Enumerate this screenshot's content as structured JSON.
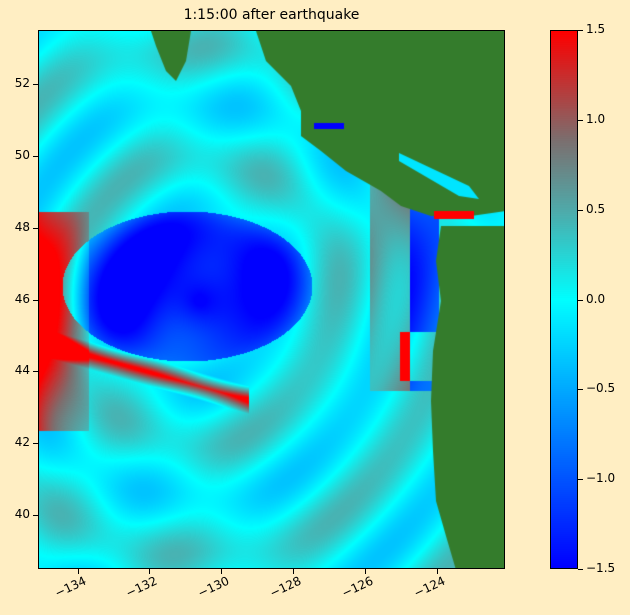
{
  "chart_data": {
    "type": "heatmap",
    "title": "1:15:00 after earthquake",
    "xlim": [
      -135.1,
      -122.1
    ],
    "ylim": [
      38.5,
      53.5
    ],
    "x_ticks": [
      "−134",
      "−132",
      "−130",
      "−128",
      "−126",
      "−124"
    ],
    "x_tick_values": [
      -134,
      -132,
      -130,
      -128,
      -126,
      -124
    ],
    "y_ticks": [
      "40",
      "42",
      "44",
      "46",
      "48",
      "50",
      "52"
    ],
    "y_tick_values": [
      40,
      42,
      44,
      46,
      48,
      50,
      52
    ],
    "colorbar": {
      "range": [
        -1.5,
        1.5
      ],
      "ticks": [
        "−1.5",
        "−1.0",
        "−0.5",
        "0.0",
        "0.5",
        "1.0",
        "1.5"
      ],
      "tick_values": [
        -1.5,
        -1.0,
        -0.5,
        0.0,
        0.5,
        1.0,
        1.5
      ],
      "colors": {
        "min": "#0000ff",
        "zero": "#00ffff",
        "mid_positive": "#7a7a7a",
        "max": "#ff0000"
      }
    },
    "land_color": "#347c2c",
    "background_color": "#ffeec3",
    "grid": false
  }
}
